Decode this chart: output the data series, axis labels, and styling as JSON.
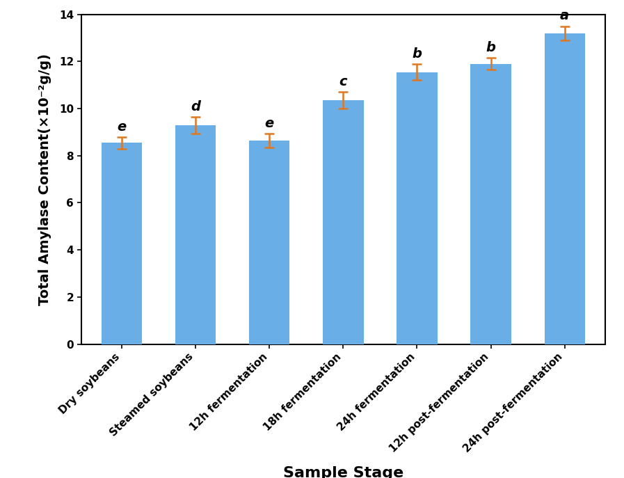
{
  "categories": [
    "Dry soybeans",
    "Steamed soybeans",
    "12h fermentation",
    "18h fermentation",
    "24h fermentation",
    "12h post-fermentation",
    "24h post-fermentation"
  ],
  "values": [
    8.55,
    9.3,
    8.65,
    10.35,
    11.55,
    11.9,
    13.2
  ],
  "errors": [
    0.25,
    0.35,
    0.3,
    0.35,
    0.35,
    0.25,
    0.3
  ],
  "labels": [
    "e",
    "d",
    "e",
    "c",
    "b",
    "b",
    "a"
  ],
  "bar_color": "#6aaee8",
  "error_color": "#e07820",
  "ylabel": "Total Amylase Content(×10⁻²g/g)",
  "xlabel": "Sample Stage",
  "ylim": [
    0,
    14
  ],
  "yticks": [
    0,
    2,
    4,
    6,
    8,
    10,
    12,
    14
  ],
  "label_fontsize": 14,
  "tick_fontsize": 11,
  "letter_fontsize": 14,
  "bar_width": 0.55,
  "figure_bg": "#ffffff"
}
